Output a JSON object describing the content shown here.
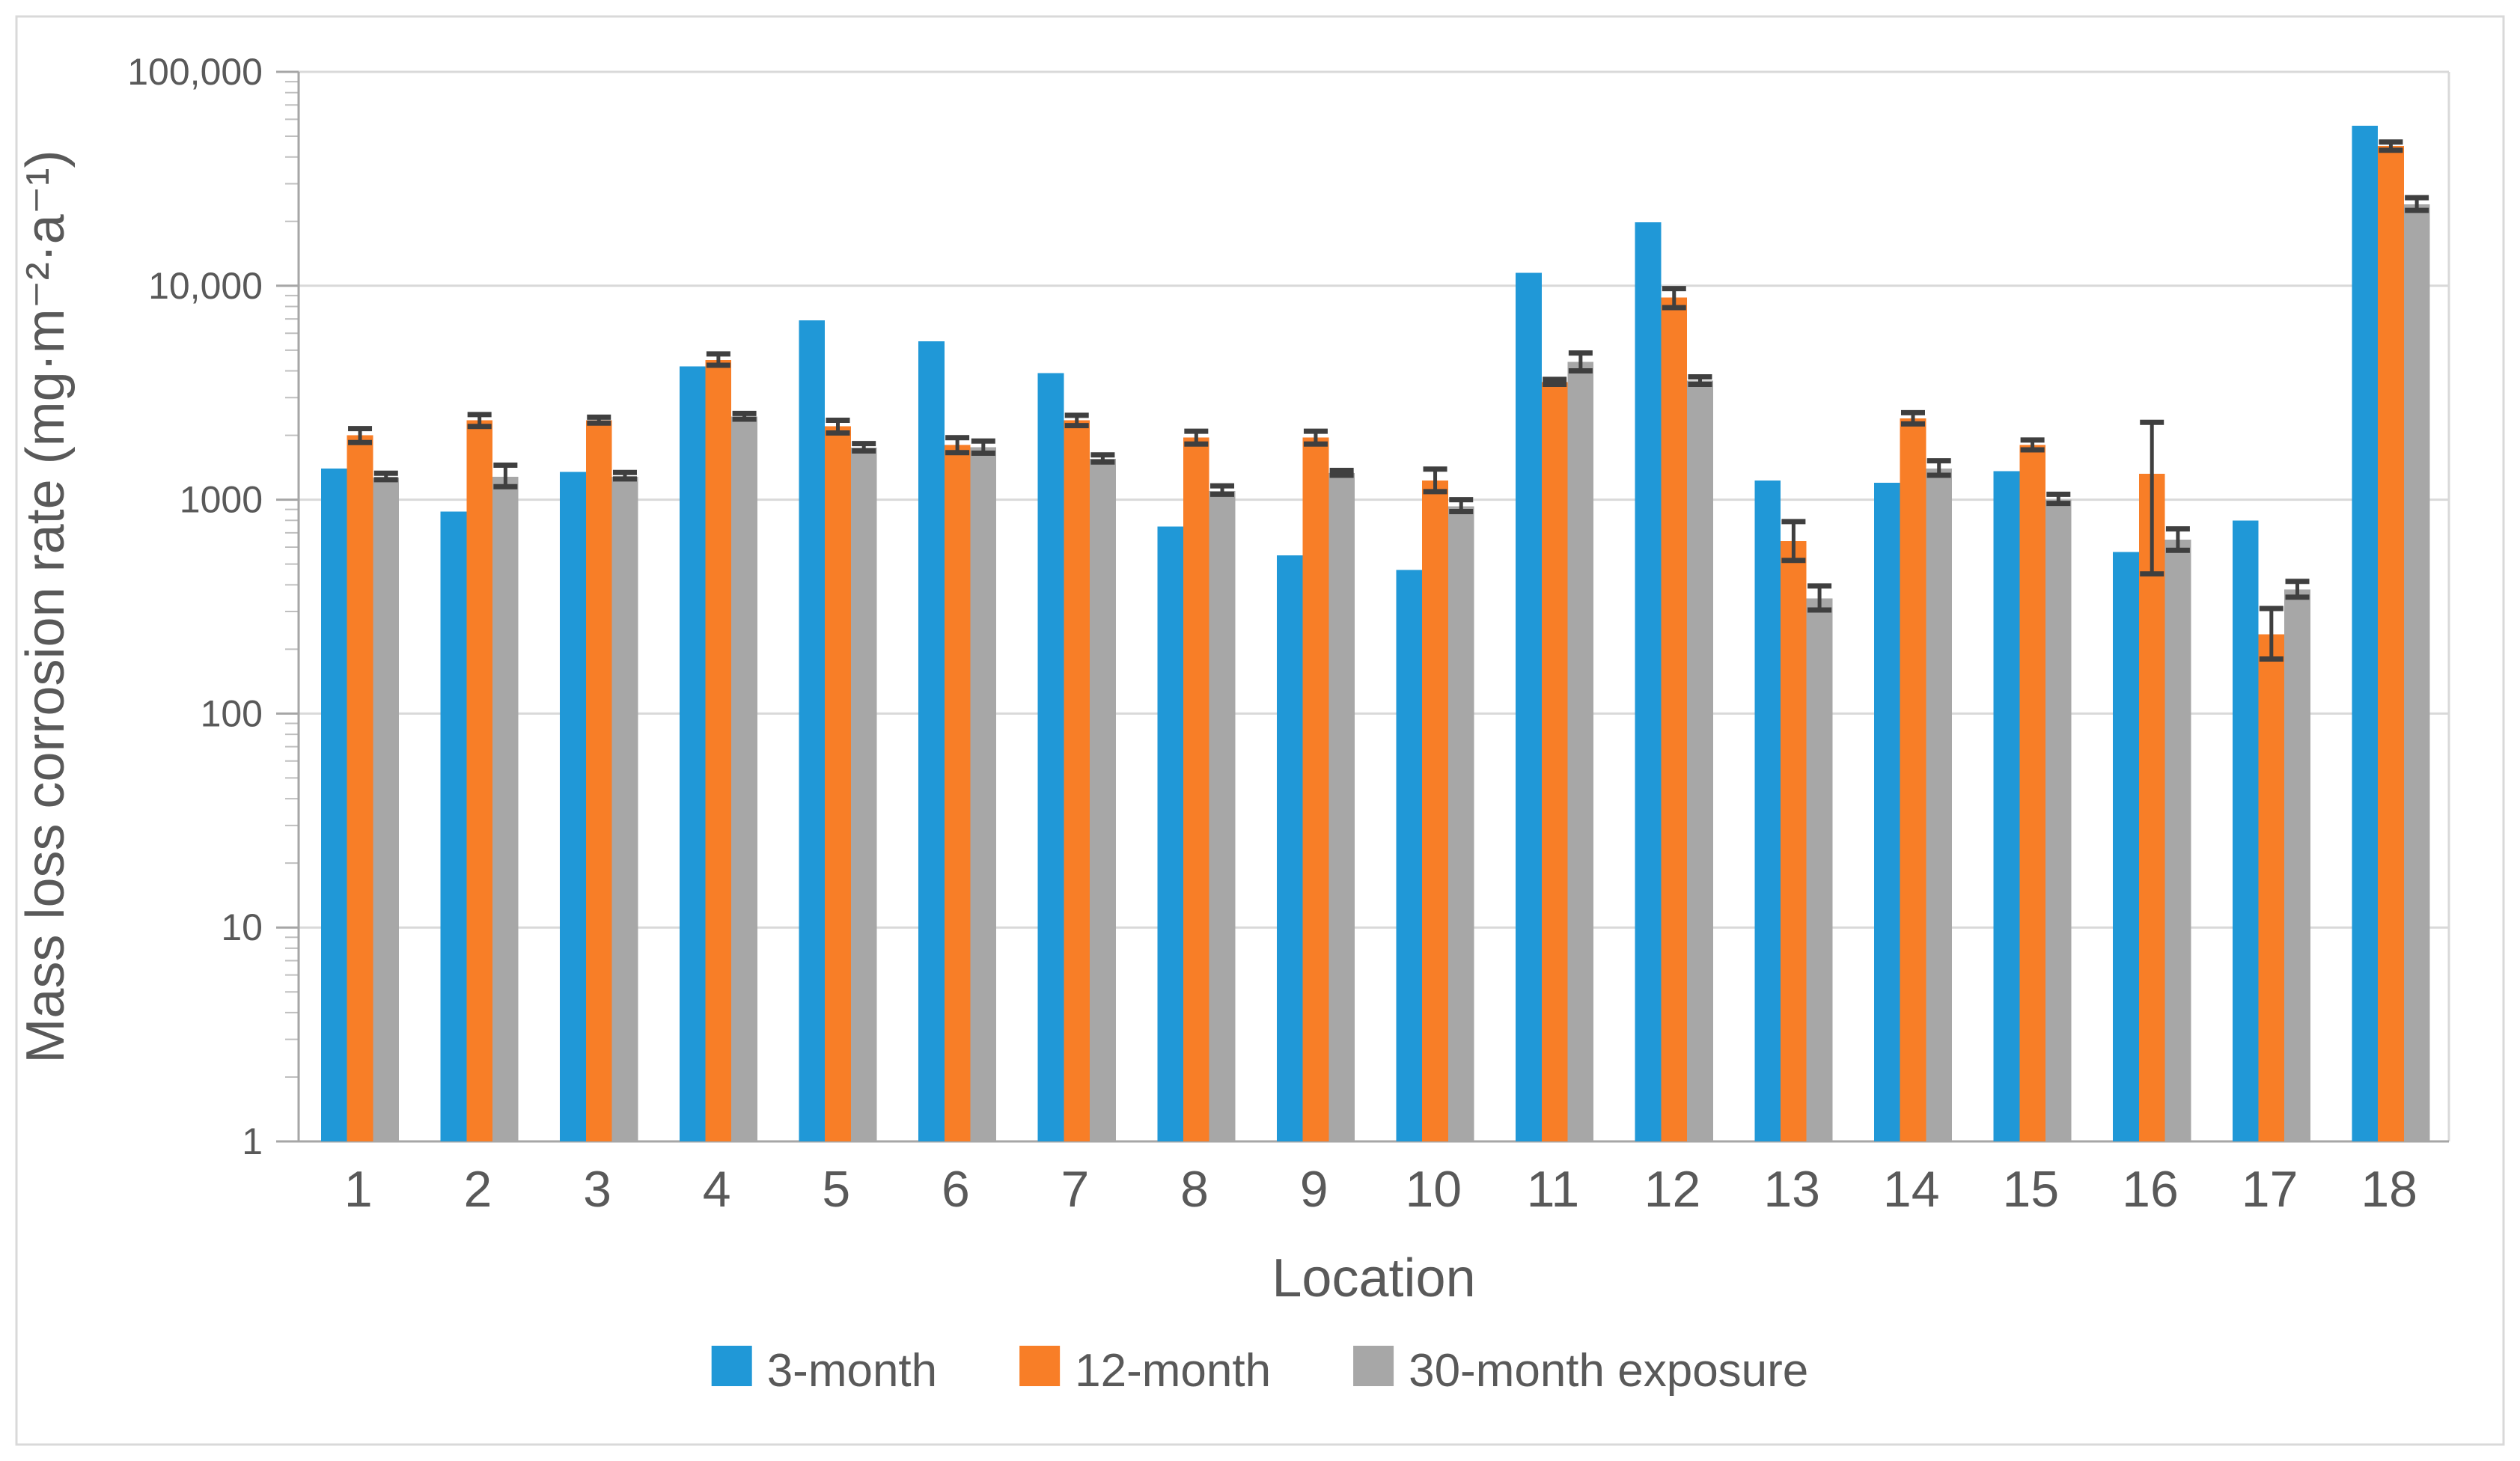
{
  "figure": {
    "background": "#FFFFFF",
    "border_color": "#D9D9D9"
  },
  "colors": {
    "series_blue": "#2098D7",
    "series_orange": "#F87E27",
    "series_gray": "#A7A7A7",
    "error_bar": "#3F3F3F",
    "gridline": "#D9D9D9",
    "axis_line": "#A6A6A6",
    "minor_tick": "#BFBFBF",
    "text": "#595959"
  },
  "axes": {
    "y_title": "Mass loss corrosion rate (mg·m⁻²·a⁻¹)",
    "x_title": "Location",
    "y_tick_labels": [
      "100,000",
      "10,000",
      "1000",
      "100",
      "10",
      "1"
    ],
    "y_tick_values": [
      100000,
      10000,
      1000,
      100,
      10,
      1
    ]
  },
  "chart_data": {
    "type": "bar",
    "title": "",
    "xlabel": "Location",
    "ylabel": "Mass loss corrosion rate (mg·m⁻²·a⁻¹)",
    "y_scale": "log10",
    "ylim": [
      1,
      100000
    ],
    "grid": true,
    "legend_position": "bottom",
    "categories": [
      "1",
      "2",
      "3",
      "4",
      "5",
      "6",
      "7",
      "8",
      "9",
      "10",
      "11",
      "12",
      "13",
      "14",
      "15",
      "16",
      "17",
      "18"
    ],
    "series": [
      {
        "name": "3-month",
        "color_key": "series_blue",
        "values": [
          1400,
          880,
          1350,
          4200,
          6900,
          5500,
          3900,
          750,
          550,
          470,
          11500,
          19800,
          1230,
          1200,
          1360,
          570,
          800,
          56000
        ]
      },
      {
        "name": "12-month",
        "color_key": "series_orange",
        "values": [
          2000,
          2350,
          2350,
          4500,
          2200,
          1800,
          2350,
          1950,
          1950,
          1230,
          3550,
          8800,
          640,
          2400,
          1800,
          1320,
          235,
          45000
        ],
        "error_low": [
          1850,
          2200,
          2280,
          4250,
          2050,
          1660,
          2220,
          1820,
          1820,
          1090,
          3460,
          7900,
          520,
          2260,
          1710,
          450,
          180,
          43000
        ],
        "error_high": [
          2150,
          2500,
          2430,
          4800,
          2350,
          1950,
          2480,
          2090,
          2090,
          1390,
          3650,
          9700,
          790,
          2550,
          1900,
          2300,
          310,
          47000
        ]
      },
      {
        "name": "30-month exposure",
        "color_key": "series_gray",
        "values": [
          1270,
          1280,
          1280,
          2450,
          1750,
          1760,
          1550,
          1100,
          1330,
          930,
          4400,
          3600,
          345,
          1400,
          1000,
          650,
          380,
          24000
        ],
        "error_low": [
          1240,
          1150,
          1250,
          2380,
          1690,
          1650,
          1500,
          1060,
          1300,
          880,
          4000,
          3460,
          305,
          1300,
          960,
          580,
          350,
          22500
        ],
        "error_high": [
          1330,
          1450,
          1340,
          2530,
          1830,
          1880,
          1620,
          1160,
          1370,
          1000,
          4850,
          3750,
          395,
          1520,
          1060,
          730,
          415,
          25800
        ]
      }
    ]
  }
}
